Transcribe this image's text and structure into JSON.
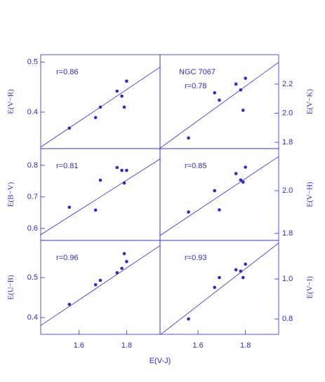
{
  "chart_data": [
    {
      "type": "scatter",
      "ylabel": "E(V−R)",
      "annotation": "r=0.86",
      "color": "#2a2ad8",
      "x": [
        1.56,
        1.67,
        1.69,
        1.76,
        1.78,
        1.79,
        1.8
      ],
      "values": [
        0.368,
        0.389,
        0.41,
        0.442,
        0.432,
        0.41,
        0.462
      ],
      "fit": {
        "x": [
          1.44,
          1.94
        ],
        "y": [
          0.33,
          0.49
        ]
      },
      "xlim": [
        1.44,
        1.94
      ],
      "ylim": [
        0.327,
        0.515
      ],
      "yticks": [
        0.4,
        0.5
      ]
    },
    {
      "type": "scatter",
      "title": "NGC 7067",
      "ylabel": "E(V−K)",
      "annotation": "r=0.78",
      "color": "#2a2ad8",
      "x": [
        1.56,
        1.67,
        1.69,
        1.76,
        1.78,
        1.79,
        1.8
      ],
      "values": [
        1.83,
        2.14,
        2.09,
        2.2,
        2.16,
        2.02,
        2.24
      ],
      "fit": {
        "x": [
          1.44,
          1.94
        ],
        "y": [
          1.76,
          2.35
        ]
      },
      "xlim": [
        1.44,
        1.94
      ],
      "ylim": [
        1.757,
        2.402
      ],
      "yticks": [
        1.8,
        {
          "value": 2,
          "label": "2.0"
        },
        2.2
      ]
    },
    {
      "type": "scatter",
      "ylabel": "E(B−V)",
      "annotation": "r=0.81",
      "color": "#2a2ad8",
      "x": [
        1.56,
        1.67,
        1.69,
        1.76,
        1.78,
        1.79,
        1.8
      ],
      "values": [
        0.667,
        0.658,
        0.753,
        0.793,
        0.784,
        0.744,
        0.784
      ],
      "fit": {
        "x": [
          1.44,
          1.94
        ],
        "y": [
          0.58,
          0.82
        ]
      },
      "xlim": [
        1.44,
        1.94
      ],
      "ylim": [
        0.562,
        0.853
      ],
      "yticks": [
        0.6,
        0.7,
        0.8
      ]
    },
    {
      "type": "scatter",
      "ylabel": "E(V−H)",
      "annotation": "r=0.85",
      "color": "#2a2ad8",
      "x": [
        1.56,
        1.67,
        1.69,
        1.76,
        1.78,
        1.79,
        1.8
      ],
      "values": [
        1.9,
        2.0,
        1.91,
        2.08,
        2.05,
        2.04,
        2.11
      ],
      "fit": {
        "x": [
          1.44,
          1.94
        ],
        "y": [
          1.79,
          2.16
        ]
      },
      "xlim": [
        1.44,
        1.94
      ],
      "ylim": [
        1.767,
        2.197
      ],
      "yticks": [
        1.8,
        {
          "value": 2,
          "label": "2.0"
        }
      ]
    },
    {
      "type": "scatter",
      "ylabel": "E(U−B)",
      "annotation": "r=0.96",
      "xlabel": "E(V-J)",
      "color": "#2a2ad8",
      "x": [
        1.56,
        1.67,
        1.69,
        1.76,
        1.78,
        1.79,
        1.8
      ],
      "values": [
        0.433,
        0.482,
        0.493,
        0.512,
        0.523,
        0.56,
        0.54
      ],
      "fit": {
        "x": [
          1.44,
          1.94
        ],
        "y": [
          0.38,
          0.58
        ]
      },
      "xlim": [
        1.44,
        1.94
      ],
      "ylim": [
        0.358,
        0.593
      ],
      "yticks": [
        0.4,
        0.5
      ],
      "xticks": [
        1.6,
        1.8
      ]
    },
    {
      "type": "scatter",
      "ylabel": "E(V−I)",
      "annotation": "r=0.93",
      "color": "#2a2ad8",
      "x": [
        1.56,
        1.67,
        1.69,
        1.76,
        1.78,
        1.79,
        1.8
      ],
      "values": [
        0.8,
        0.958,
        1.007,
        1.046,
        1.039,
        1.007,
        1.074
      ],
      "fit": {
        "x": [
          1.44,
          1.94
        ],
        "y": [
          0.72,
          1.18
        ]
      },
      "xlim": [
        1.44,
        1.94
      ],
      "ylim": [
        0.723,
        1.193
      ],
      "yticks": [
        0.8,
        {
          "value": 1,
          "label": "1.0"
        }
      ],
      "xticks": [
        1.6,
        1.8
      ]
    }
  ]
}
